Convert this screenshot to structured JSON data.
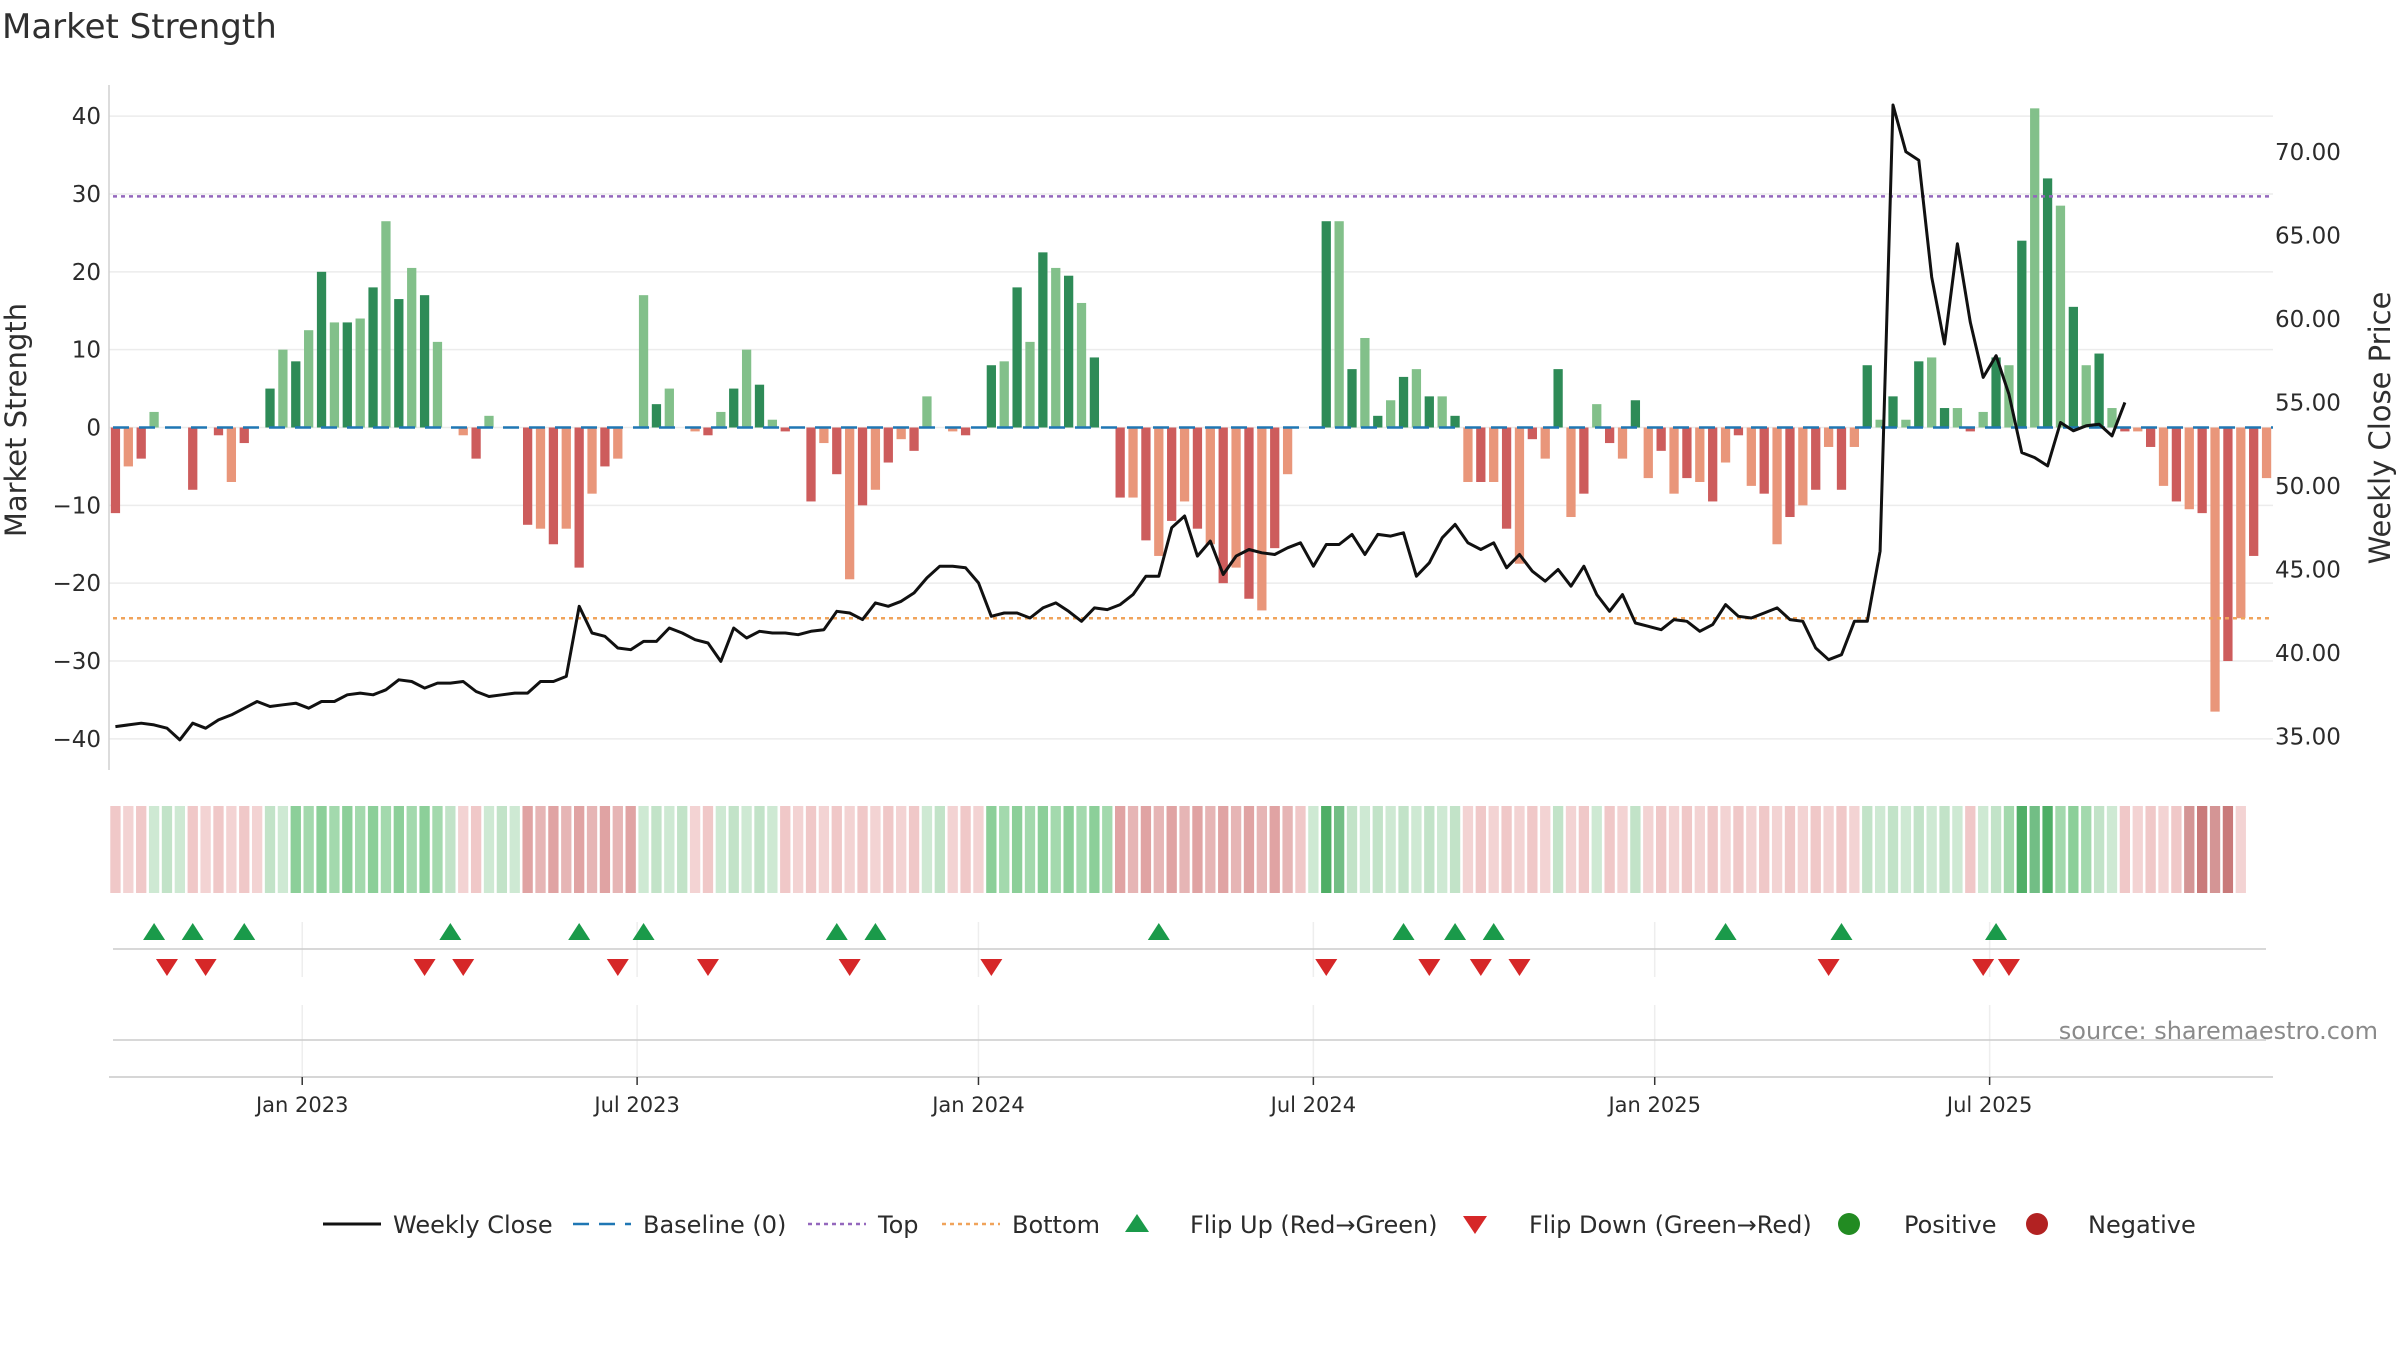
{
  "chart_data": {
    "type": "bar",
    "title": "Market Strength",
    "ylabel_left": "Market Strength",
    "ylabel_right": "Weekly Close Price",
    "left_ylim": [
      -44,
      44
    ],
    "right_ylim": [
      33.0,
      74.0
    ],
    "left_ticks": [
      40,
      30,
      20,
      10,
      0,
      -10,
      -20,
      -30,
      -40
    ],
    "left_tick_labels": [
      "40",
      "30",
      "20",
      "10",
      "0",
      "−10",
      "−20",
      "−30",
      "−40"
    ],
    "right_ticks": [
      70,
      65,
      60,
      55,
      50,
      45,
      40,
      35
    ],
    "right_tick_labels": [
      "70.00",
      "65.00",
      "60.00",
      "55.00",
      "50.00",
      "45.00",
      "40.00",
      "35.00"
    ],
    "top_threshold": 29.7,
    "bottom_threshold": -24.5,
    "baseline": 0,
    "date_ticks": [
      {
        "label": "Jan 2023",
        "index": 14.5
      },
      {
        "label": "Jul 2023",
        "index": 40.5
      },
      {
        "label": "Jan 2024",
        "index": 67
      },
      {
        "label": "Jul 2024",
        "index": 93
      },
      {
        "label": "Jan 2025",
        "index": 119.5
      },
      {
        "label": "Jul 2025",
        "index": 145.5
      }
    ],
    "strength": [
      -11,
      -5,
      -4,
      2,
      0,
      0,
      -8,
      0,
      -1,
      -7,
      -2,
      0,
      5,
      10,
      8.5,
      12.5,
      20,
      13.5,
      13.5,
      14,
      18,
      26.5,
      16.5,
      20.5,
      17,
      11,
      0,
      -1,
      -4,
      1.5,
      0,
      0,
      -12.5,
      -13,
      -15,
      -13,
      -18,
      -8.5,
      -5,
      -4,
      0,
      17,
      3,
      5,
      0,
      -0.5,
      -1,
      2,
      5,
      10,
      5.5,
      1,
      -0.5,
      0,
      -9.5,
      -2,
      -6,
      -19.5,
      -10,
      -8,
      -4.5,
      -1.5,
      -3,
      4,
      0,
      -0.5,
      -1,
      0,
      8,
      8.5,
      18,
      11,
      22.5,
      20.5,
      19.5,
      16,
      9,
      0,
      -9,
      -9,
      -14.5,
      -16.5,
      -12,
      -9.5,
      -13,
      -15,
      -20,
      -18,
      -22,
      -23.5,
      -15.5,
      -6,
      0,
      0,
      26.5,
      26.5,
      7.5,
      11.5,
      1.5,
      3.5,
      6.5,
      7.5,
      4,
      4,
      1.5,
      -7,
      -7,
      -7,
      -13,
      -17.5,
      -1.5,
      -4,
      7.5,
      -11.5,
      -8.5,
      3,
      -2,
      -4,
      3.5,
      -6.5,
      -3,
      -8.5,
      -6.5,
      -7,
      -9.5,
      -4.5,
      -1,
      -7.5,
      -8.5,
      -15,
      -11.5,
      -10,
      -8,
      -2.5,
      -8,
      -2.5,
      8,
      1,
      4,
      1,
      8.5,
      9,
      2.5,
      2.5,
      -0.5,
      2,
      9,
      8,
      24,
      41,
      32,
      28.5,
      15.5,
      8,
      9.5,
      2.5,
      -0.5,
      -0.5,
      -2.5,
      -7.5,
      -9.5,
      -10.5,
      -11,
      -36.5,
      -30,
      -24.5,
      -16.5,
      -6.5
    ],
    "weekly_close": [
      35.6,
      35.7,
      35.8,
      35.7,
      35.5,
      34.8,
      35.8,
      35.5,
      36.0,
      36.3,
      36.7,
      37.1,
      36.8,
      36.9,
      37.0,
      36.7,
      37.1,
      37.1,
      37.5,
      37.6,
      37.5,
      37.8,
      38.4,
      38.3,
      37.9,
      38.2,
      38.2,
      38.3,
      37.7,
      37.4,
      37.5,
      37.6,
      37.6,
      38.3,
      38.3,
      38.6,
      42.8,
      41.2,
      41.0,
      40.3,
      40.2,
      40.7,
      40.7,
      41.5,
      41.2,
      40.8,
      40.6,
      39.5,
      41.5,
      40.9,
      41.3,
      41.2,
      41.2,
      41.1,
      41.3,
      41.4,
      42.5,
      42.4,
      42.0,
      43.0,
      42.8,
      43.1,
      43.6,
      44.5,
      45.2,
      45.2,
      45.1,
      44.2,
      42.2,
      42.4,
      42.4,
      42.1,
      42.7,
      43.0,
      42.5,
      41.9,
      42.7,
      42.6,
      42.9,
      43.5,
      44.6,
      44.6,
      47.5,
      48.2,
      45.8,
      46.7,
      44.7,
      45.8,
      46.2,
      46.0,
      45.9,
      46.3,
      46.6,
      45.2,
      46.5,
      46.5,
      47.1,
      45.9,
      47.1,
      47.0,
      47.2,
      44.6,
      45.4,
      46.9,
      47.7,
      46.6,
      46.2,
      46.6,
      45.1,
      45.9,
      44.9,
      44.3,
      45.0,
      44.0,
      45.2,
      43.5,
      42.5,
      43.5,
      41.8,
      41.6,
      41.4,
      42.0,
      41.9,
      41.3,
      41.7,
      42.9,
      42.2,
      42.1,
      42.4,
      42.7,
      42.0,
      41.9,
      40.3,
      39.6,
      39.9,
      41.9,
      41.9,
      46.1,
      72.8,
      70.0,
      69.5,
      62.5,
      58.5,
      64.5,
      59.8,
      56.5,
      57.8,
      55.5,
      52.0,
      51.7,
      51.2,
      53.8,
      53.3,
      53.6,
      53.7,
      53.0,
      55.0
    ],
    "regime_bands": [
      1,
      1,
      1,
      1,
      1,
      1,
      1,
      1,
      1,
      1,
      1,
      1,
      1,
      1,
      2,
      2,
      2,
      2,
      2,
      2,
      2,
      2,
      2,
      2,
      2,
      2,
      1,
      1,
      1,
      1,
      1,
      1,
      2,
      2,
      2,
      2,
      2,
      2,
      2,
      2,
      2,
      1,
      1,
      1,
      1,
      1,
      1,
      1,
      1,
      1,
      1,
      1,
      1,
      1,
      1,
      1,
      1,
      1,
      1,
      1,
      1,
      1,
      1,
      1,
      1,
      1,
      1,
      1,
      2,
      2,
      2,
      2,
      2,
      2,
      2,
      2,
      2,
      2,
      2,
      2,
      2,
      2,
      2,
      2,
      2,
      2,
      2,
      2,
      2,
      2,
      2,
      2,
      1,
      1,
      3,
      3,
      1,
      1,
      1,
      1,
      1,
      1,
      1,
      1,
      1,
      1,
      1,
      1,
      1,
      1,
      1,
      1,
      1,
      1,
      1,
      1,
      1,
      1,
      1,
      1,
      1,
      1,
      1,
      1,
      1,
      1,
      1,
      1,
      1,
      1,
      1,
      1,
      1,
      1,
      1,
      1,
      1,
      1,
      1,
      1,
      1,
      1,
      1,
      1,
      1,
      1,
      1,
      2,
      3,
      3,
      3,
      2,
      2,
      2,
      1,
      1,
      1,
      1,
      1,
      1,
      1,
      3,
      3,
      3,
      3,
      1
    ],
    "flip_up": [
      3,
      6,
      10,
      26,
      36,
      41,
      56,
      59,
      81,
      100,
      104,
      107,
      125,
      134,
      146
    ],
    "flip_down": [
      4,
      7,
      24,
      27,
      39,
      46,
      57,
      68,
      94,
      102,
      106,
      109,
      133,
      145,
      147
    ],
    "colors": {
      "pos_strong": "#2e8b57",
      "pos_weak": "#82c08a",
      "neg_strong": "#cd5c5c",
      "neg_weak": "#e9967a",
      "close_line": "#111111",
      "baseline": "#1f77b4",
      "top_line": "#9467bd",
      "bottom_line": "#f0a35a",
      "flip_up": "#1a9a4a",
      "flip_down": "#d62728",
      "positive_dot": "#228b22",
      "negative_dot": "#b22222"
    },
    "legend": [
      {
        "key": "close",
        "label": "Weekly Close"
      },
      {
        "key": "baseline",
        "label": "Baseline (0)"
      },
      {
        "key": "top",
        "label": "Top"
      },
      {
        "key": "bottom",
        "label": "Bottom"
      },
      {
        "key": "flip_up",
        "label": "Flip Up (Red→Green)"
      },
      {
        "key": "flip_down",
        "label": "Flip Down (Green→Red)"
      },
      {
        "key": "positive",
        "label": "Positive"
      },
      {
        "key": "negative",
        "label": "Negative"
      }
    ],
    "source_note": "source: sharemaestro.com"
  }
}
